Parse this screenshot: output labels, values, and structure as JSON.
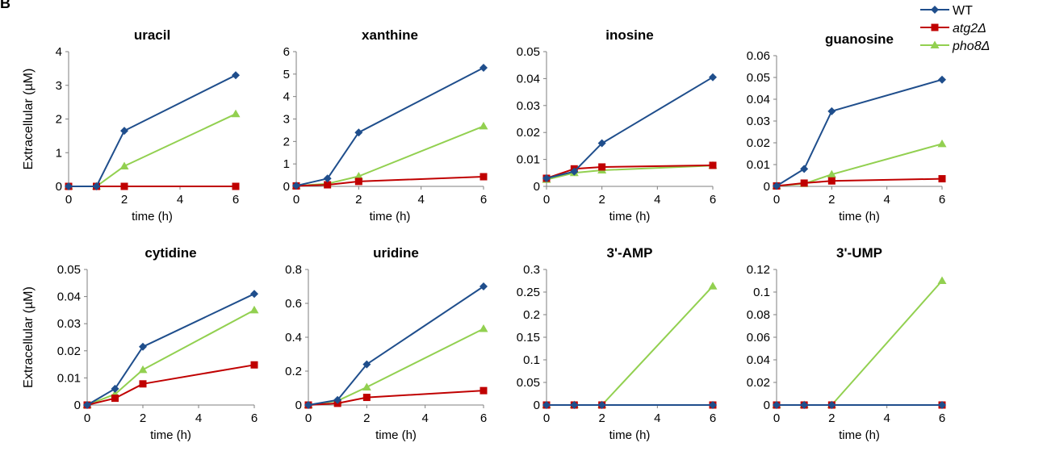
{
  "figure_letter": "B",
  "shared_ylabel": "Extracellular (µM)",
  "legend": [
    {
      "name": "WT",
      "italic": false,
      "color": "#1f4e8c",
      "marker": "diamond"
    },
    {
      "name": "atg2Δ",
      "italic": true,
      "color": "#c00000",
      "marker": "square"
    },
    {
      "name": "pho8Δ",
      "italic": true,
      "color": "#92d050",
      "marker": "triangle"
    }
  ],
  "chart_data": [
    {
      "type": "line",
      "title": "uracil",
      "xlabel": "time (h)",
      "ylabel": "Extracellular (µM)",
      "x": [
        0,
        1,
        2,
        6
      ],
      "xlim": [
        0,
        6
      ],
      "xticks": [
        0,
        2,
        4,
        6
      ],
      "ylim": [
        0,
        4
      ],
      "yticks": [
        "0",
        "1",
        "2",
        "3",
        "4"
      ],
      "series": [
        {
          "name": "WT",
          "values": [
            0,
            0,
            1.65,
            3.3
          ]
        },
        {
          "name": "atg2Δ",
          "values": [
            0,
            0,
            0,
            0
          ]
        },
        {
          "name": "pho8Δ",
          "values": [
            0,
            0,
            0.6,
            2.15
          ]
        }
      ]
    },
    {
      "type": "line",
      "title": "xanthine",
      "xlabel": "time (h)",
      "ylabel": "",
      "x": [
        0,
        1,
        2,
        6
      ],
      "xlim": [
        0,
        6
      ],
      "xticks": [
        0,
        2,
        4,
        6
      ],
      "ylim": [
        0,
        6
      ],
      "yticks": [
        "0",
        "1",
        "2",
        "3",
        "4",
        "5",
        "6"
      ],
      "series": [
        {
          "name": "WT",
          "values": [
            0.03,
            0.35,
            2.4,
            5.28
          ]
        },
        {
          "name": "atg2Δ",
          "values": [
            0.02,
            0.07,
            0.22,
            0.43
          ]
        },
        {
          "name": "pho8Δ",
          "values": [
            0.02,
            0.12,
            0.45,
            2.68
          ]
        }
      ]
    },
    {
      "type": "line",
      "title": "inosine",
      "xlabel": "time (h)",
      "ylabel": "",
      "x": [
        0,
        1,
        2,
        6
      ],
      "xlim": [
        0,
        6
      ],
      "xticks": [
        0,
        2,
        4,
        6
      ],
      "ylim": [
        0,
        0.05
      ],
      "yticks": [
        "0",
        "0.01",
        "0.02",
        "0.03",
        "0.04",
        "0.05"
      ],
      "series": [
        {
          "name": "WT",
          "values": [
            0.003,
            0.0055,
            0.016,
            0.0405
          ]
        },
        {
          "name": "atg2Δ",
          "values": [
            0.003,
            0.0065,
            0.0072,
            0.0078
          ]
        },
        {
          "name": "pho8Δ",
          "values": [
            0.0025,
            0.005,
            0.006,
            0.0077
          ]
        }
      ]
    },
    {
      "type": "line",
      "title": "guanosine",
      "xlabel": "time (h)",
      "ylabel": "",
      "x": [
        0,
        1,
        2,
        6
      ],
      "xlim": [
        0,
        6
      ],
      "xticks": [
        0,
        2,
        4,
        6
      ],
      "ylim": [
        0,
        0.06
      ],
      "yticks": [
        "0",
        "0.01",
        "0.02",
        "0.03",
        "0.04",
        "0.05",
        "0.06"
      ],
      "series": [
        {
          "name": "WT",
          "values": [
            0.0002,
            0.008,
            0.0345,
            0.049
          ]
        },
        {
          "name": "atg2Δ",
          "values": [
            0.0002,
            0.0015,
            0.0025,
            0.0035
          ]
        },
        {
          "name": "pho8Δ",
          "values": [
            0.0002,
            0.0012,
            0.0055,
            0.0195
          ]
        }
      ]
    },
    {
      "type": "line",
      "title": "cytidine",
      "xlabel": "time (h)",
      "ylabel": "Extracellular (µM)",
      "x": [
        0,
        1,
        2,
        6
      ],
      "xlim": [
        0,
        6
      ],
      "xticks": [
        0,
        2,
        4,
        6
      ],
      "ylim": [
        0,
        0.05
      ],
      "yticks": [
        "0",
        "0.01",
        "0.02",
        "0.03",
        "0.04",
        "0.05"
      ],
      "series": [
        {
          "name": "WT",
          "values": [
            0,
            0.006,
            0.0215,
            0.041
          ]
        },
        {
          "name": "atg2Δ",
          "values": [
            0,
            0.0025,
            0.0078,
            0.0148
          ]
        },
        {
          "name": "pho8Δ",
          "values": [
            0,
            0.004,
            0.013,
            0.035
          ]
        }
      ]
    },
    {
      "type": "line",
      "title": "uridine",
      "xlabel": "time (h)",
      "ylabel": "",
      "x": [
        0,
        1,
        2,
        6
      ],
      "xlim": [
        0,
        6
      ],
      "xticks": [
        0,
        2,
        4,
        6
      ],
      "ylim": [
        0,
        0.8
      ],
      "yticks": [
        "0",
        "0.2",
        "0.4",
        "0.6",
        "0.8"
      ],
      "series": [
        {
          "name": "WT",
          "values": [
            0,
            0.03,
            0.24,
            0.7
          ]
        },
        {
          "name": "atg2Δ",
          "values": [
            0,
            0.01,
            0.045,
            0.085
          ]
        },
        {
          "name": "pho8Δ",
          "values": [
            0,
            0.025,
            0.105,
            0.45
          ]
        }
      ]
    },
    {
      "type": "line",
      "title": "3'-AMP",
      "xlabel": "time (h)",
      "ylabel": "",
      "x": [
        0,
        1,
        2,
        6
      ],
      "xlim": [
        0,
        6
      ],
      "xticks": [
        0,
        2,
        4,
        6
      ],
      "ylim": [
        0,
        0.3
      ],
      "yticks": [
        "0",
        "0.05",
        "0.1",
        "0.15",
        "0.2",
        "0.25",
        "0.3"
      ],
      "series": [
        {
          "name": "WT",
          "values": [
            0,
            0,
            0,
            0
          ]
        },
        {
          "name": "atg2Δ",
          "values": [
            0,
            0,
            0,
            0
          ]
        },
        {
          "name": "pho8Δ",
          "values": [
            0,
            0,
            0,
            0.263
          ]
        }
      ]
    },
    {
      "type": "line",
      "title": "3'-UMP",
      "xlabel": "time (h)",
      "ylabel": "",
      "x": [
        0,
        1,
        2,
        6
      ],
      "xlim": [
        0,
        6
      ],
      "xticks": [
        0,
        2,
        4,
        6
      ],
      "ylim": [
        0,
        0.12
      ],
      "yticks": [
        "0",
        "0.02",
        "0.04",
        "0.06",
        "0.08",
        "0.1",
        "0.12"
      ],
      "series": [
        {
          "name": "WT",
          "values": [
            0,
            0,
            0,
            0
          ]
        },
        {
          "name": "atg2Δ",
          "values": [
            0,
            0,
            0,
            0
          ]
        },
        {
          "name": "pho8Δ",
          "values": [
            0,
            0,
            0,
            0.11
          ]
        }
      ]
    }
  ]
}
